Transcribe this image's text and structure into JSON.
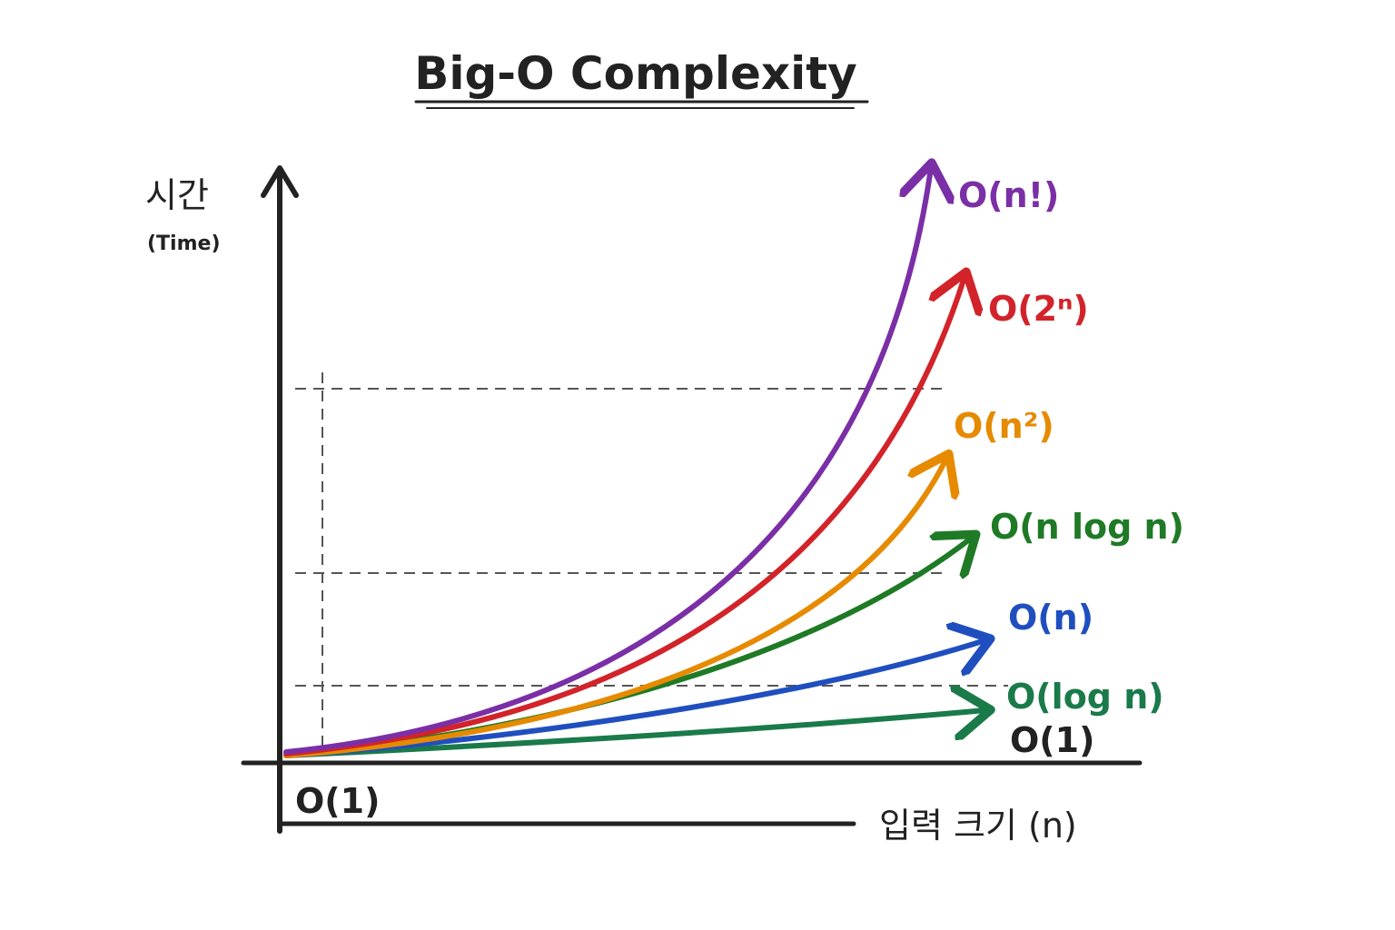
{
  "title": "Big-O Complexity",
  "y_axis": {
    "label": "시간",
    "sublabel": "(Time)"
  },
  "x_axis": {
    "label": "입력 크기 (n)"
  },
  "origin_label": "O(1)",
  "colors": {
    "ink": "#222222",
    "grid": "#555555",
    "factorial": "#7b2fa6",
    "exponential": "#d2232a",
    "quadratic": "#e68a00",
    "linearithmic": "#1f7a26",
    "linear": "#1f4fbf",
    "logarithmic": "#1a7a4a",
    "constant": "#222222"
  },
  "curves": [
    {
      "id": "factorial",
      "label": "O(n!)",
      "color": "#7b2fa6",
      "icon": "arrow-head"
    },
    {
      "id": "exponential",
      "label": "O(2ⁿ)",
      "color": "#d2232a",
      "icon": "arrow-head"
    },
    {
      "id": "quadratic",
      "label": "O(n²)",
      "color": "#e68a00",
      "icon": "arrow-head"
    },
    {
      "id": "linearithmic",
      "label": "O(n log n)",
      "color": "#1f7a26",
      "icon": "arrow-head"
    },
    {
      "id": "linear",
      "label": "O(n)",
      "color": "#1f4fbf",
      "icon": "arrow-head"
    },
    {
      "id": "logarithmic",
      "label": "O(log n)",
      "color": "#1a7a4a",
      "icon": "arrow-head"
    },
    {
      "id": "constant",
      "label": "O(1)",
      "color": "#222222",
      "icon": "none"
    }
  ],
  "gridlines": {
    "style": "dashed",
    "horizontal_count": 3,
    "vertical_count": 1
  }
}
